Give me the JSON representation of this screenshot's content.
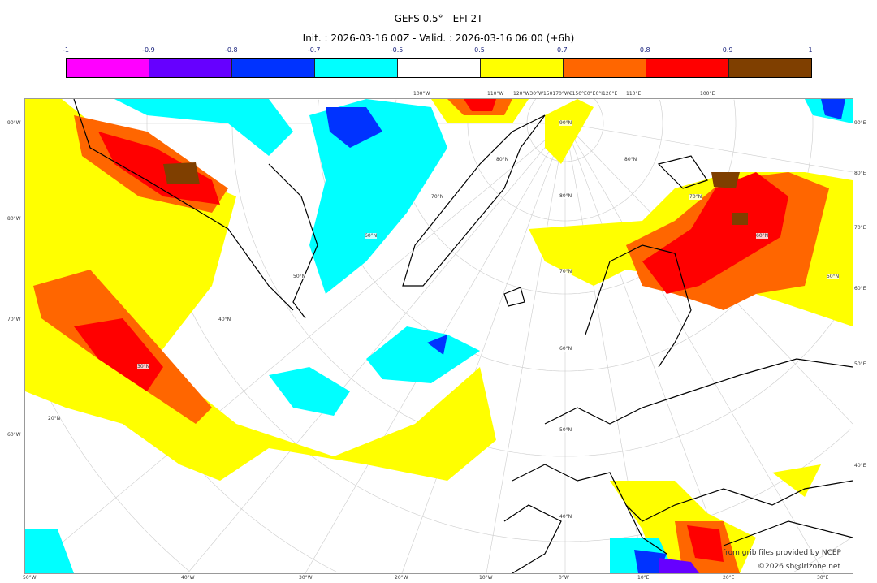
{
  "title": "GEFS 0.5° - EFI 2T",
  "subtitle": "Init. : 2026-03-16 00Z - Valid. : 2026-03-16 06:00 (+6h)",
  "colorbar": {
    "ticks": [
      "-1",
      "-0.9",
      "-0.8",
      "-0.7",
      "-0.5",
      "0.5",
      "0.7",
      "0.8",
      "0.9",
      "1"
    ],
    "colors": [
      "#ff00ff",
      "#6600ff",
      "#0033ff",
      "#00ffff",
      "#ffffff",
      "#ffff00",
      "#ff6600",
      "#ff0000",
      "#7f3f00"
    ]
  },
  "axes": {
    "left": [
      "90°W",
      "80°W",
      "70°W",
      "60°W"
    ],
    "right": [
      "90°E",
      "80°E",
      "70°E",
      "60°E",
      "50°E",
      "40°E"
    ],
    "bottom": [
      "50°W",
      "40°W",
      "30°W",
      "20°W",
      "10°W",
      "0°W",
      "10°E",
      "20°E",
      "30°E"
    ],
    "top": [
      "100°W",
      "110°W",
      "120°W30°W150170°W€150°E0°E0°I120°E",
      "110°E",
      "100°E"
    ],
    "lat_labels": [
      "90°N",
      "80°N",
      "80°N",
      "70°N",
      "70°N",
      "60°N",
      "60°N",
      "50°N",
      "50°N",
      "40°N",
      "30°N",
      "20°N",
      "80°N",
      "70°N",
      "60°N",
      "50°N",
      "40°N"
    ]
  },
  "credits": {
    "source": "from grib files provided by NCEP",
    "copyright": "©2026 sb@irizone.net"
  }
}
